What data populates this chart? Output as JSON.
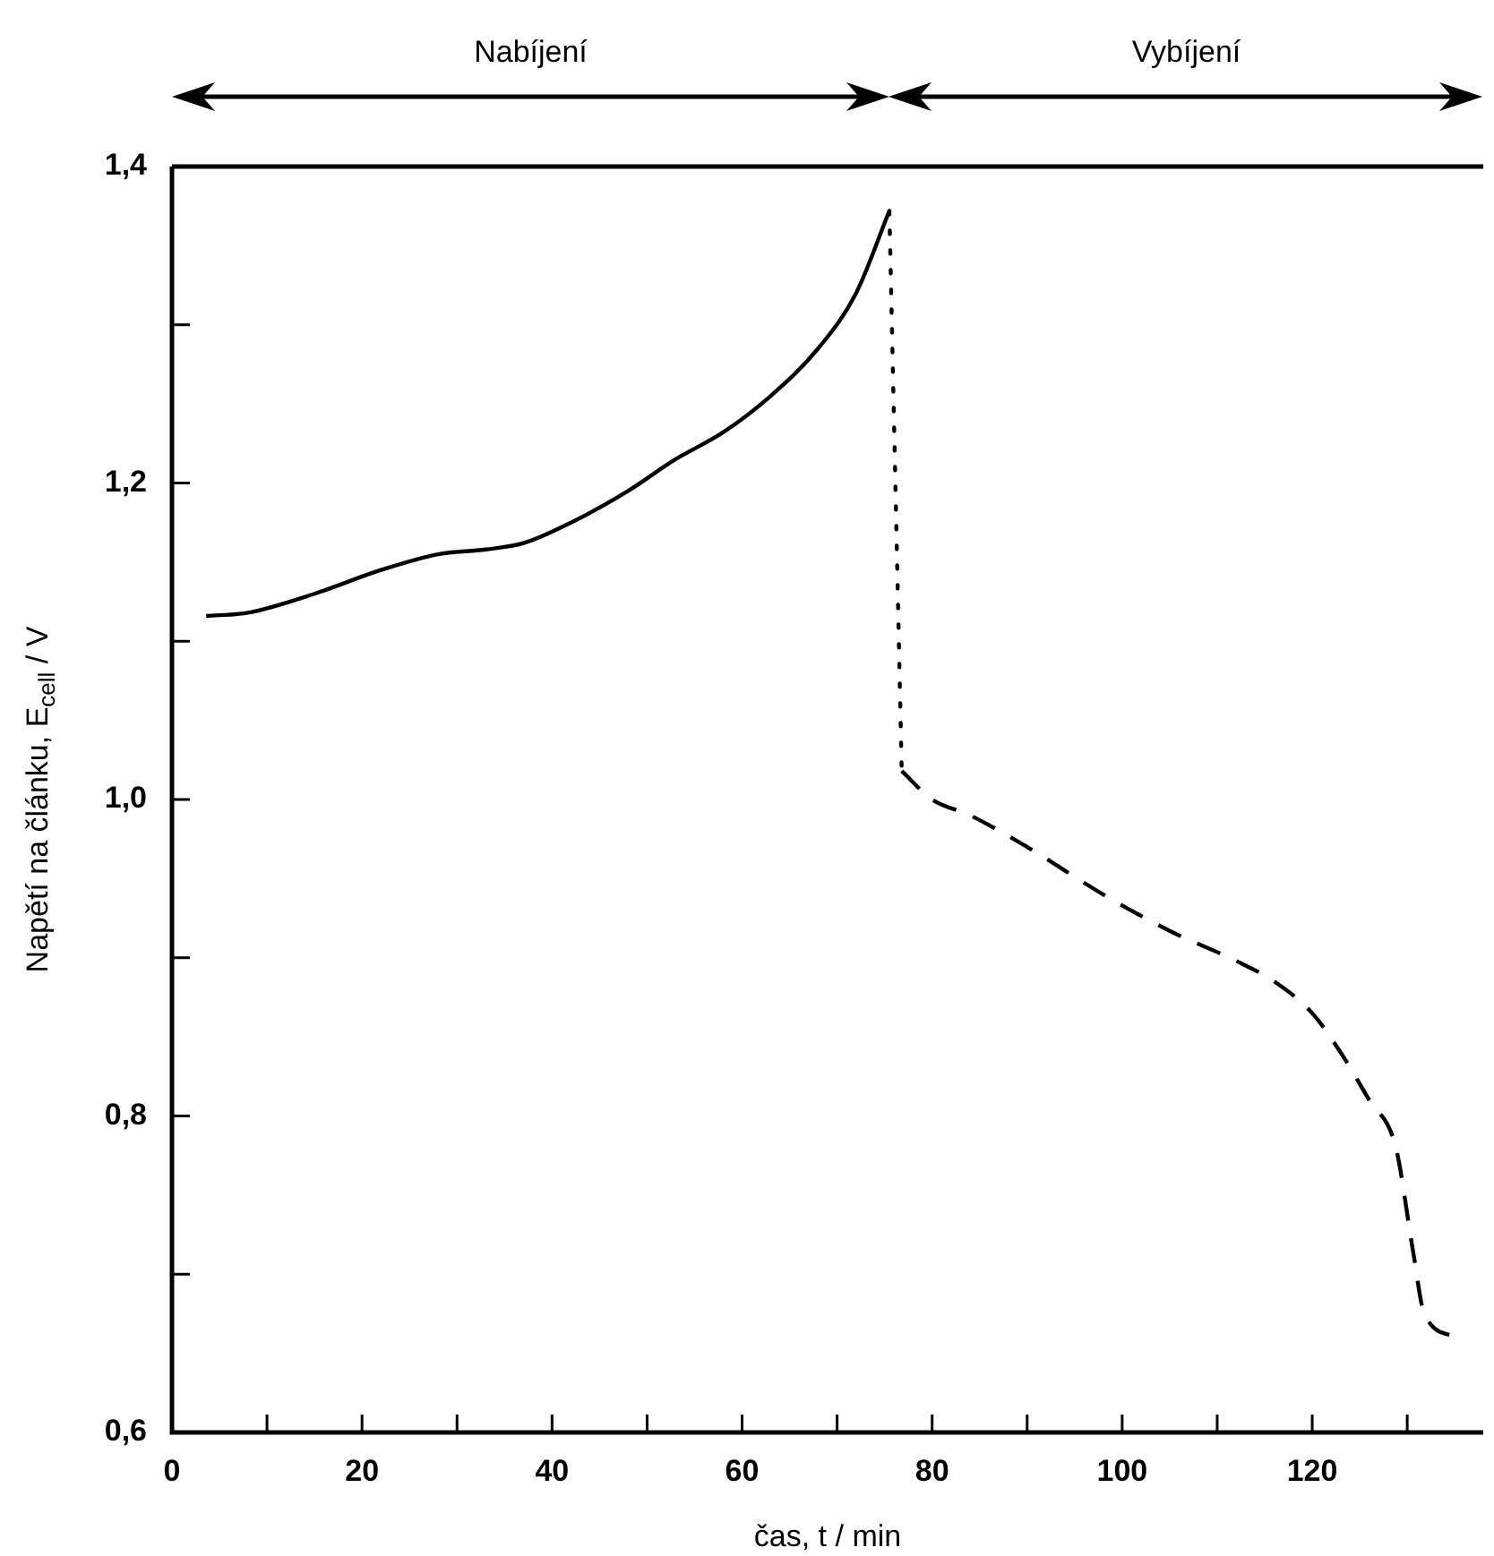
{
  "chart_data": {
    "type": "line",
    "xlabel": "čas, t / min",
    "ylabel": "Napětí na článku, E$_{cell}$ / V",
    "xlim": [
      0,
      138
    ],
    "ylim": [
      0.6,
      1.4
    ],
    "xticks": [
      0,
      {
        "value": 10,
        "label": null
      },
      20,
      {
        "value": 30,
        "label": null
      },
      40,
      {
        "value": 50,
        "label": null
      },
      60,
      {
        "value": 70,
        "label": null
      },
      80,
      {
        "value": 90,
        "label": null
      },
      100,
      {
        "value": 110,
        "label": null
      },
      120,
      {
        "value": 130,
        "label": null
      }
    ],
    "yticks": [
      {
        "value": 0.6,
        "label": "0,6"
      },
      {
        "value": 0.7,
        "label": null
      },
      {
        "value": 0.8,
        "label": "0,8"
      },
      {
        "value": 0.9,
        "label": null
      },
      {
        "value": 1.0,
        "label": "1,0"
      },
      {
        "value": 1.1,
        "label": null
      },
      {
        "value": 1.2,
        "label": "1,2"
      },
      {
        "value": 1.3,
        "label": null
      },
      {
        "value": 1.4,
        "label": "1,4"
      }
    ],
    "series": [
      {
        "color": "#000000",
        "line_style": "solid",
        "x": [
          3.6,
          8,
          15,
          22,
          28,
          33,
          37,
          42,
          48,
          53,
          58,
          63,
          68,
          72,
          75.5
        ],
        "values": [
          1.116,
          1.118,
          1.13,
          1.145,
          1.155,
          1.158,
          1.162,
          1.175,
          1.195,
          1.215,
          1.232,
          1.255,
          1.285,
          1.32,
          1.372
        ]
      },
      {
        "color": "#000000",
        "line_style": "dotted",
        "x": [
          75.5,
          76.8
        ],
        "values": [
          1.372,
          1.018
        ]
      },
      {
        "color": "#000000",
        "line_style": "dashed",
        "x": [
          76.8,
          80,
          84,
          90,
          98,
          105,
          112,
          116,
          120,
          123,
          126,
          128.8,
          130.6,
          131.8,
          135.3
        ],
        "values": [
          1.018,
          1.0,
          0.99,
          0.97,
          0.94,
          0.917,
          0.898,
          0.885,
          0.865,
          0.84,
          0.81,
          0.78,
          0.715,
          0.675,
          0.66
        ]
      }
    ],
    "annotations": [
      "Nabíjení",
      "Vybíjení"
    ],
    "grid": false,
    "legend": false,
    "marker": "none"
  }
}
